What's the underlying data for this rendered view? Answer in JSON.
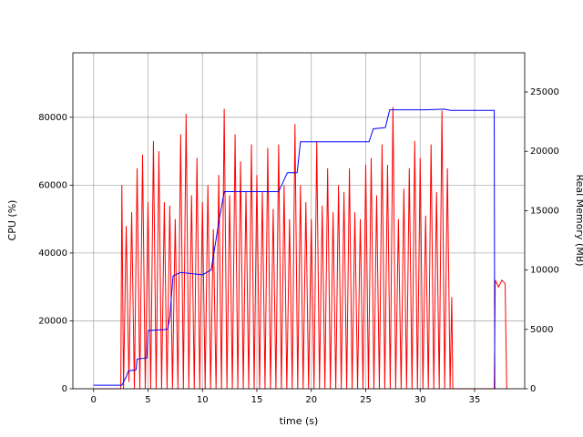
{
  "chart_data": {
    "type": "line",
    "xlabel": "time (s)",
    "ylabel": "CPU (%)",
    "y2label": "Real Memory (MB)",
    "ylabel_color": "#ff0000",
    "y2label_color": "#0000ff",
    "xlim": [
      -1.9,
      39.6
    ],
    "ylim": [
      0,
      99000
    ],
    "y2lim": [
      0,
      28300
    ],
    "xticks": [
      0,
      5,
      10,
      15,
      20,
      25,
      30,
      35
    ],
    "yticks": [
      0,
      20000,
      40000,
      60000,
      80000
    ],
    "y2ticks": [
      0,
      5000,
      10000,
      15000,
      20000,
      25000
    ],
    "grid": true,
    "series": [
      {
        "color": "#ff0000",
        "axis": "y",
        "x": [
          0,
          2.5,
          2.6,
          2.75,
          3.0,
          3.25,
          3.5,
          3.75,
          4.0,
          4.25,
          4.5,
          4.75,
          5.0,
          5.25,
          5.5,
          5.75,
          6.0,
          6.25,
          6.5,
          6.75,
          7.0,
          7.25,
          7.5,
          7.75,
          8.0,
          8.25,
          8.5,
          8.75,
          9.0,
          9.25,
          9.5,
          9.75,
          10.0,
          10.25,
          10.5,
          10.75,
          11.0,
          11.25,
          11.5,
          11.75,
          12.0,
          12.25,
          12.5,
          12.75,
          13.0,
          13.25,
          13.5,
          13.75,
          14.0,
          14.25,
          14.5,
          14.75,
          15.0,
          15.25,
          15.5,
          15.75,
          16.0,
          16.25,
          16.5,
          16.75,
          17.0,
          17.25,
          17.5,
          17.75,
          18.0,
          18.25,
          18.5,
          18.75,
          19.0,
          19.25,
          19.5,
          19.75,
          20.0,
          20.25,
          20.5,
          20.75,
          21.0,
          21.25,
          21.5,
          21.75,
          22.0,
          22.25,
          22.5,
          22.75,
          23.0,
          23.25,
          23.5,
          23.75,
          24.0,
          24.25,
          24.5,
          24.75,
          25.0,
          25.25,
          25.5,
          25.75,
          26.0,
          26.25,
          26.5,
          26.75,
          27.0,
          27.25,
          27.5,
          27.75,
          28.0,
          28.25,
          28.5,
          28.75,
          29.0,
          29.25,
          29.5,
          29.75,
          30.0,
          30.25,
          30.5,
          30.75,
          31.0,
          31.25,
          31.5,
          31.75,
          32.0,
          32.25,
          32.5,
          32.75,
          32.9,
          33.0,
          36.8,
          36.9,
          37.2,
          37.5,
          37.8,
          37.95
        ],
        "values": [
          0,
          0,
          60000,
          0,
          48000,
          2000,
          52000,
          0,
          65000,
          0,
          69000,
          0,
          55000,
          0,
          73000,
          0,
          70000,
          0,
          55000,
          0,
          54000,
          0,
          50000,
          0,
          75000,
          0,
          81000,
          0,
          57000,
          0,
          68000,
          0,
          55000,
          0,
          60000,
          0,
          47000,
          0,
          63000,
          0,
          82500,
          0,
          57000,
          0,
          75000,
          0,
          67000,
          0,
          58000,
          0,
          72000,
          0,
          63000,
          0,
          58000,
          0,
          71000,
          0,
          53000,
          0,
          72000,
          0,
          60000,
          0,
          50000,
          0,
          78000,
          0,
          60000,
          0,
          55000,
          0,
          50000,
          0,
          73000,
          0,
          54000,
          0,
          65000,
          0,
          52000,
          0,
          60000,
          0,
          58000,
          0,
          65000,
          0,
          52000,
          0,
          50000,
          0,
          66000,
          0,
          68000,
          0,
          57000,
          0,
          72000,
          0,
          66000,
          0,
          83000,
          0,
          50000,
          0,
          59000,
          0,
          65000,
          0,
          73000,
          0,
          68000,
          0,
          51000,
          0,
          72000,
          0,
          58000,
          0,
          82000,
          0,
          65000,
          0,
          27000,
          0,
          0,
          32000,
          30000,
          32000,
          31000,
          0
        ]
      },
      {
        "color": "#0000ff",
        "axis": "y2",
        "x": [
          0,
          2.6,
          3.0,
          3.2,
          3.9,
          4.0,
          4.9,
          5.0,
          6.8,
          7.0,
          7.3,
          8.0,
          10.0,
          10.8,
          11.5,
          12.0,
          17.0,
          17.8,
          18.7,
          19.0,
          25.3,
          25.7,
          26.8,
          27.2,
          30.5,
          32.2,
          32.8,
          36.8,
          36.85
        ],
        "values": [
          300,
          300,
          1000,
          1500,
          1600,
          2500,
          2600,
          4900,
          5000,
          6000,
          9500,
          9800,
          9600,
          10000,
          14000,
          16600,
          16600,
          18200,
          18200,
          20800,
          20800,
          21900,
          22000,
          23500,
          23500,
          23550,
          23450,
          23450,
          0
        ]
      }
    ]
  }
}
